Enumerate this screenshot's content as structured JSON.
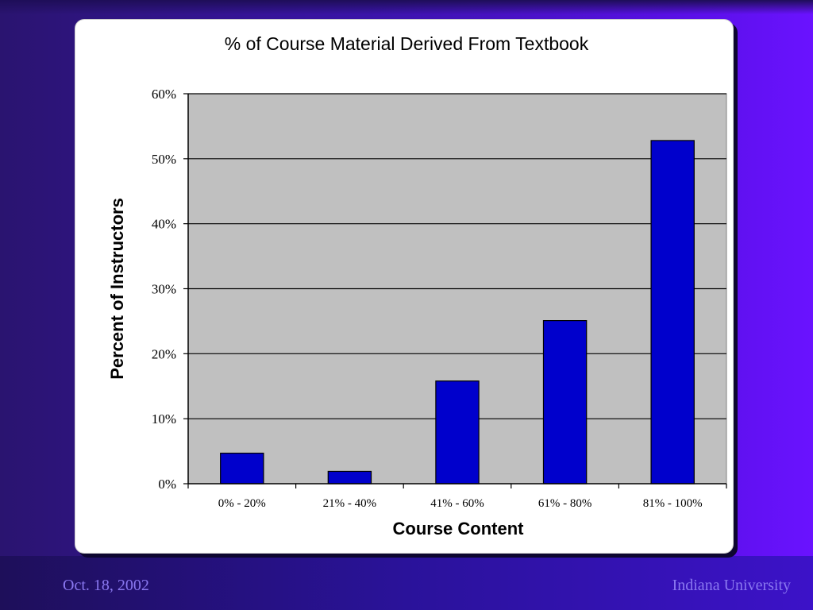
{
  "chart_data": {
    "type": "bar",
    "title": "% of Course Material Derived From Textbook",
    "xlabel": "Course Content",
    "ylabel": "Percent of Instructors",
    "categories": [
      "0% - 20%",
      "21% - 40%",
      "41% - 60%",
      "61% - 80%",
      "81% - 100%"
    ],
    "values": [
      4.7,
      1.9,
      15.8,
      25.1,
      52.8
    ],
    "ylim": [
      0,
      60
    ],
    "yticks": [
      "0%",
      "10%",
      "20%",
      "30%",
      "40%",
      "50%",
      "60%"
    ],
    "ytick_values": [
      0,
      10,
      20,
      30,
      40,
      50,
      60
    ],
    "grid": true,
    "bar_color": "#0000cc",
    "plot_background": "#c0c0c0"
  },
  "footer": {
    "date": "Oct. 18, 2002",
    "institution": "Indiana University"
  }
}
